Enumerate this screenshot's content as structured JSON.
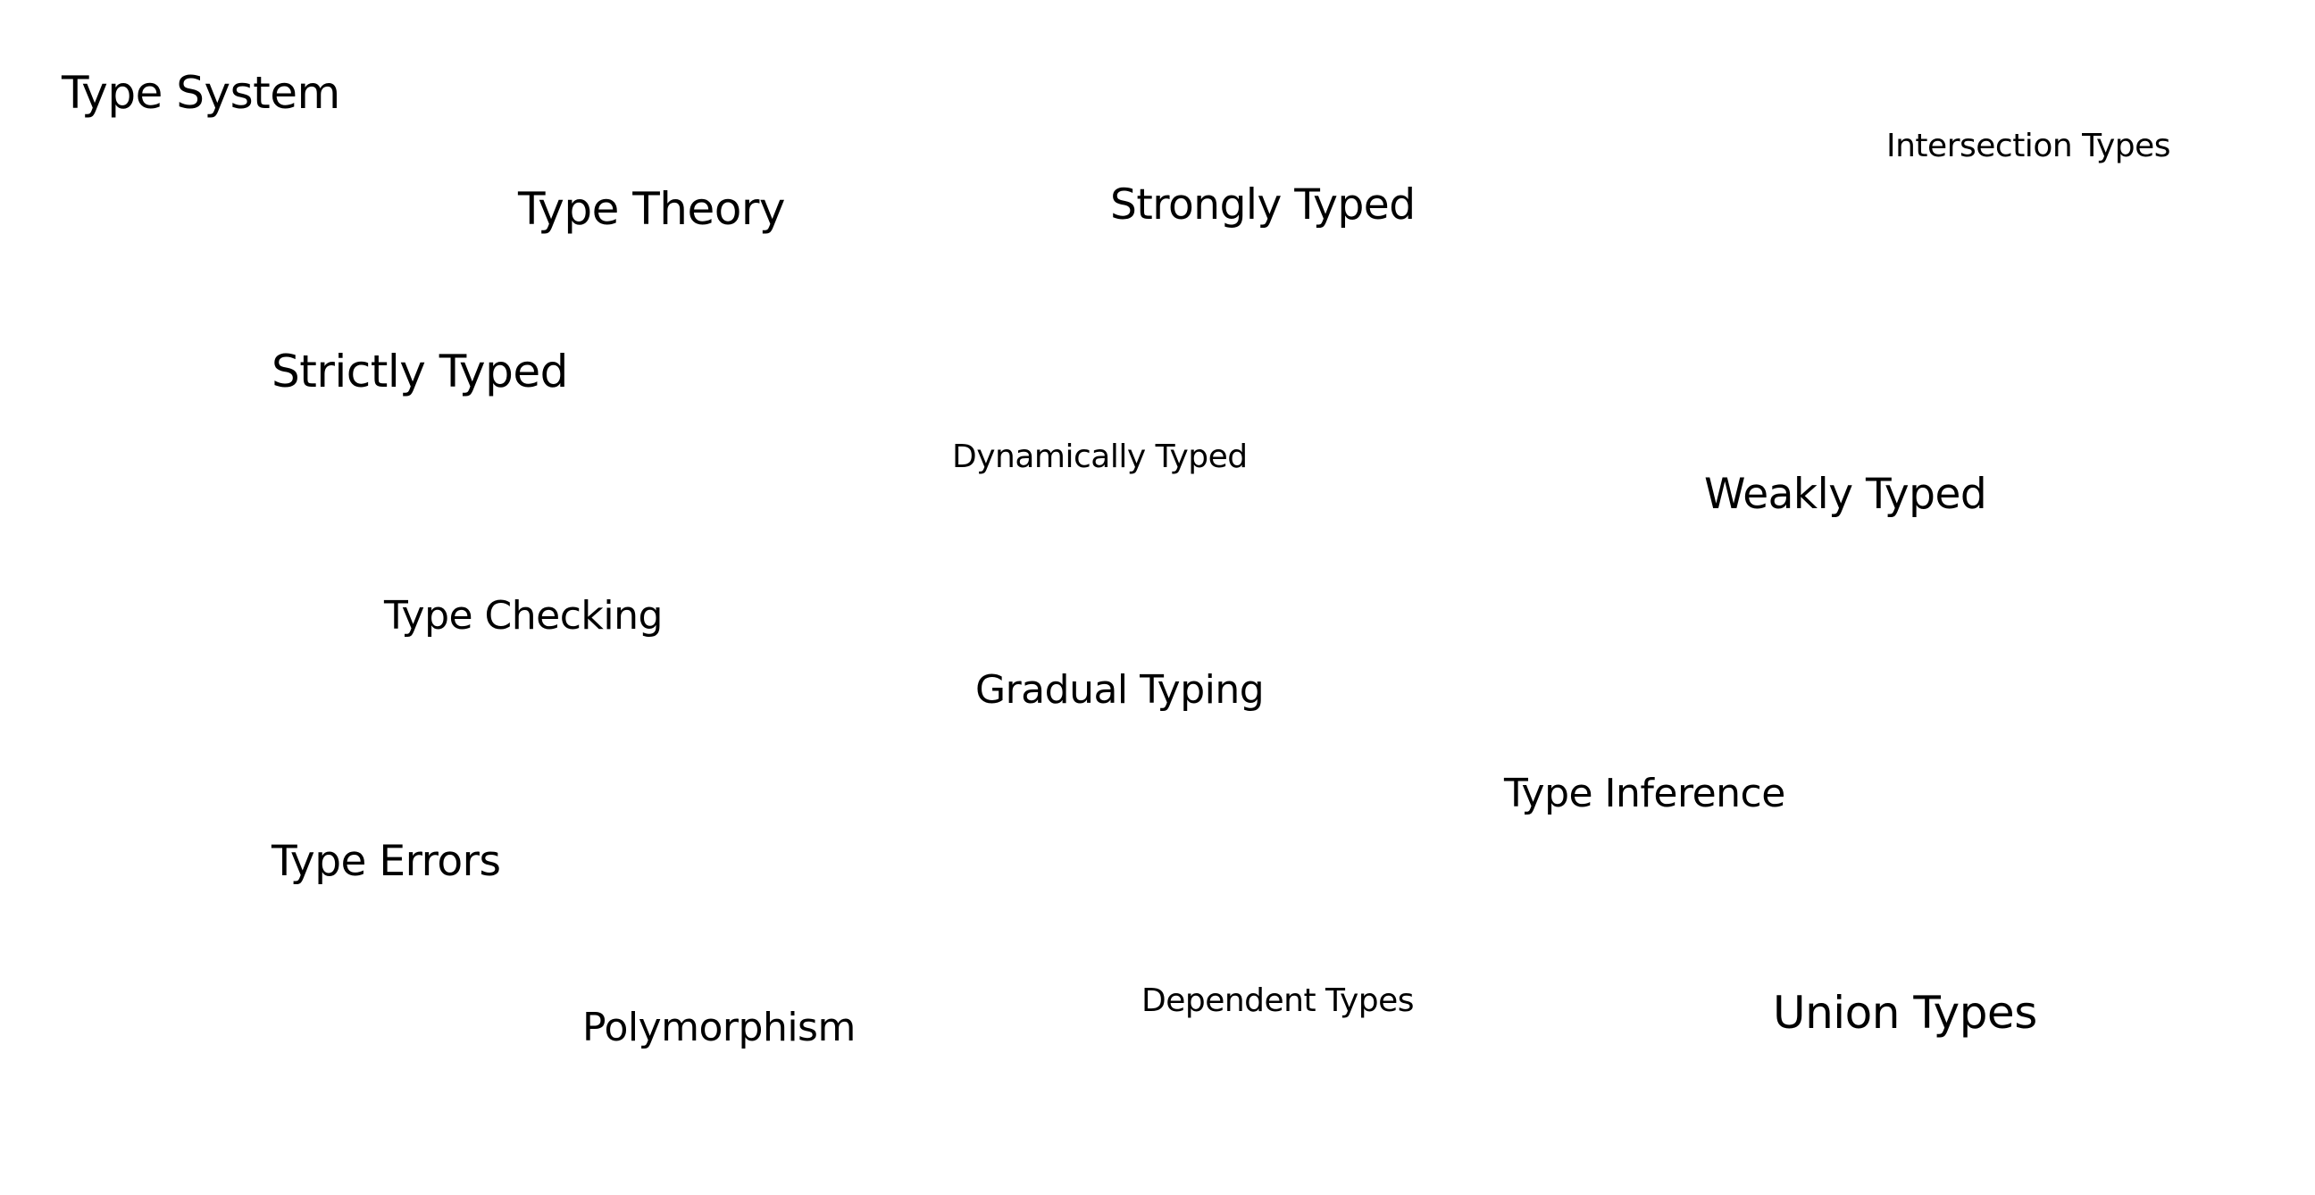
{
  "terms": [
    "Type System",
    "Intersection Types",
    "Type Theory",
    "Strongly Typed",
    "Strictly Typed",
    "Dynamically Typed",
    "Weakly Typed",
    "Type Checking",
    "Gradual Typing",
    "Type Inference",
    "Type Errors",
    "Polymorphism",
    "Dependent Types",
    "Union Types"
  ]
}
